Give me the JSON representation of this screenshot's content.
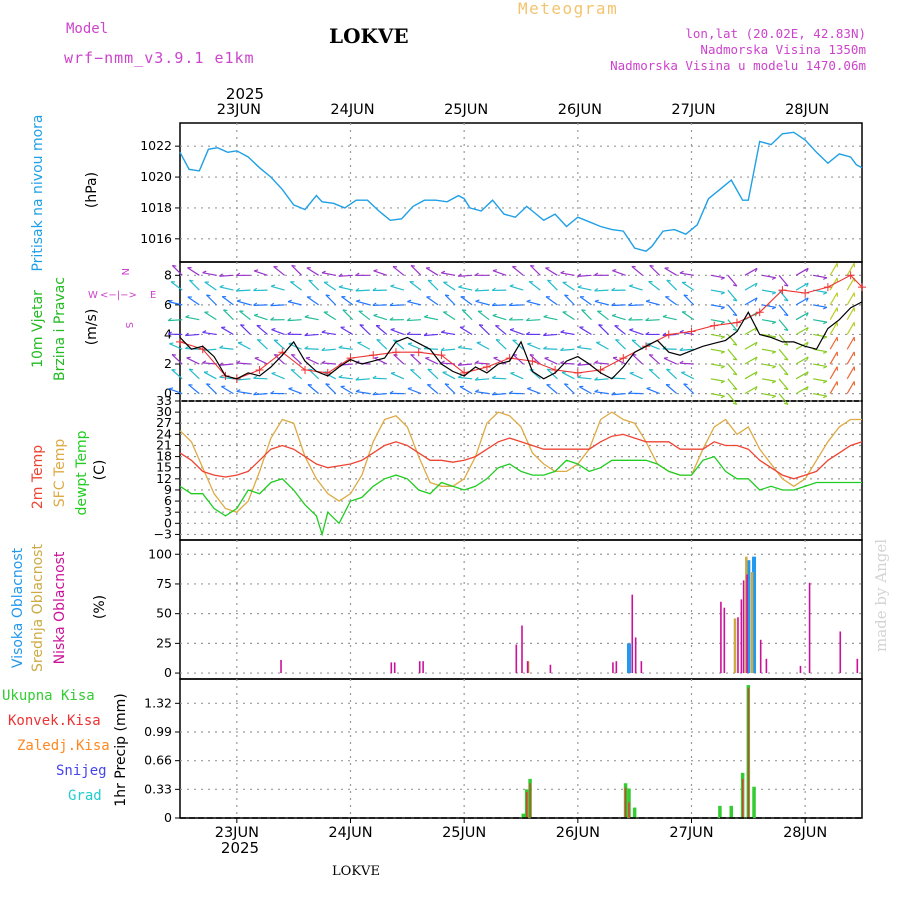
{
  "header": {
    "model_label": "Model",
    "model_name": "wrf−nmm_v3.9.1  e1km",
    "station": "LOKVE",
    "product": "Meteogram",
    "coords": "lon,lat (20.02E, 42.83N)",
    "elevation": "Nadmorska Visina 1350m",
    "model_elevation": "Nadmorska Visina u modelu 1470.06m"
  },
  "footer": {
    "station": "LOKVE",
    "credit": "made by Angel"
  },
  "colors": {
    "pressure": "#1fa0e6",
    "wind_label": "#22bb22",
    "speed_line": "#000000",
    "gust": "#ee3333",
    "t2m": "#ee4433",
    "tsfc": "#ddaa44",
    "dewpt": "#22cc22",
    "cloud_high": "#2299ee",
    "cloud_mid": "#ccaa44",
    "cloud_low": "#cc1199",
    "rain_total": "#33cc33",
    "rain_conv": "#ee3333",
    "freezing": "#ff8822",
    "snow": "#4444ee",
    "hail": "#22cccc",
    "compass": "#cc44cc"
  },
  "chart_data": [
    {
      "type": "line",
      "ylabel": [
        "Pritisak na nivou mora",
        "(hPa)"
      ],
      "x_year": "2025",
      "x_ticks": [
        "23JUN",
        "24JUN",
        "25JUN",
        "26JUN",
        "27JUN",
        "28JUN"
      ],
      "x_range_days": [
        22.5,
        28.5
      ],
      "ylim": [
        1014.5,
        1023.5
      ],
      "yticks": [
        "1016",
        "1018",
        "1020",
        "1022"
      ],
      "series": [
        {
          "x": [
            22.5,
            22.58,
            22.67,
            22.75,
            22.83,
            22.92,
            23.0,
            23.1,
            23.2,
            23.3,
            23.4,
            23.5,
            23.6,
            23.7,
            23.75,
            23.85,
            23.95,
            24.05,
            24.15,
            24.25,
            24.35,
            24.45,
            24.55,
            24.65,
            24.75,
            24.85,
            24.95,
            25.0,
            25.05,
            25.15,
            25.25,
            25.35,
            25.45,
            25.55,
            25.6,
            25.7,
            25.8,
            25.9,
            26.0,
            26.1,
            26.2,
            26.3,
            26.4,
            26.5,
            26.6,
            26.65,
            26.75,
            26.85,
            26.95,
            27.05,
            27.15,
            27.25,
            27.35,
            27.45,
            27.5,
            27.6,
            27.7,
            27.8,
            27.9,
            28.0,
            28.1,
            28.2,
            28.3,
            28.4,
            28.45,
            28.5
          ],
          "y": [
            1021.6,
            1020.5,
            1020.4,
            1021.8,
            1021.9,
            1021.6,
            1021.7,
            1021.3,
            1020.6,
            1020.0,
            1019.2,
            1018.2,
            1017.9,
            1018.8,
            1018.4,
            1018.3,
            1018.0,
            1018.5,
            1018.5,
            1017.8,
            1017.2,
            1017.3,
            1018.1,
            1018.5,
            1018.5,
            1018.4,
            1018.8,
            1018.6,
            1018.0,
            1017.8,
            1018.5,
            1017.6,
            1017.4,
            1018.1,
            1017.8,
            1017.2,
            1017.6,
            1016.8,
            1017.4,
            1017.1,
            1016.8,
            1016.6,
            1016.5,
            1015.4,
            1015.2,
            1015.5,
            1016.5,
            1016.6,
            1016.3,
            1016.9,
            1018.6,
            1019.2,
            1019.8,
            1018.5,
            1018.5,
            1022.3,
            1022.1,
            1022.8,
            1022.9,
            1022.4,
            1021.6,
            1020.9,
            1021.5,
            1021.3,
            1020.8,
            1020.6
          ]
        }
      ]
    },
    {
      "type": "line",
      "ylabel": [
        "10m Vjetar",
        "Brzina i Pravac",
        "(m/s)"
      ],
      "compass": {
        "n": "N",
        "s": "S",
        "e": "E",
        "w": "W",
        "nw": "«<−",
        "ne": "−>",
        "sw": "−»",
        "ne2": "<−"
      },
      "ylim": [
        -0.5,
        8.9
      ],
      "yticks": [
        "0",
        "2",
        "4",
        "6",
        "8"
      ],
      "series": [
        {
          "name": "speed",
          "x": [
            22.5,
            22.6,
            22.7,
            22.8,
            22.9,
            23.0,
            23.1,
            23.2,
            23.3,
            23.4,
            23.5,
            23.6,
            23.7,
            23.8,
            23.9,
            24.0,
            24.1,
            24.2,
            24.3,
            24.4,
            24.5,
            24.6,
            24.7,
            24.8,
            24.9,
            25.0,
            25.1,
            25.2,
            25.3,
            25.4,
            25.5,
            25.6,
            25.7,
            25.8,
            25.9,
            26.0,
            26.1,
            26.2,
            26.3,
            26.4,
            26.5,
            26.6,
            26.7,
            26.8,
            26.9,
            27.0,
            27.1,
            27.2,
            27.3,
            27.4,
            27.5,
            27.6,
            27.7,
            27.8,
            27.9,
            28.0,
            28.1,
            28.2,
            28.3,
            28.4,
            28.5
          ],
          "y": [
            3.8,
            3.0,
            3.2,
            2.5,
            1.2,
            1.0,
            1.4,
            1.2,
            1.8,
            2.6,
            3.5,
            2.2,
            1.5,
            1.2,
            1.8,
            2.3,
            2.0,
            2.2,
            2.4,
            3.5,
            3.8,
            3.4,
            3.0,
            2.0,
            1.5,
            1.2,
            1.8,
            1.4,
            2.0,
            2.2,
            3.5,
            1.5,
            1.0,
            1.4,
            2.2,
            2.5,
            2.0,
            1.4,
            1.0,
            1.8,
            2.8,
            3.2,
            3.6,
            2.8,
            2.6,
            2.9,
            3.2,
            3.4,
            3.6,
            4.2,
            5.5,
            4.0,
            3.8,
            3.5,
            3.5,
            3.2,
            3.0,
            4.4,
            5.0,
            5.8,
            6.2
          ]
        },
        {
          "name": "gust",
          "x": [
            22.5,
            22.7,
            22.9,
            23.0,
            23.2,
            23.4,
            23.6,
            23.8,
            24.0,
            24.2,
            24.4,
            24.6,
            24.8,
            25.0,
            25.2,
            25.4,
            25.6,
            25.8,
            26.0,
            26.2,
            26.4,
            26.6,
            26.8,
            27.0,
            27.2,
            27.4,
            27.6,
            27.8,
            28.0,
            28.2,
            28.4,
            28.5
          ],
          "y": [
            3.5,
            3.0,
            1.2,
            1.0,
            1.6,
            2.8,
            1.6,
            1.4,
            2.4,
            2.6,
            2.8,
            2.8,
            2.6,
            1.4,
            1.8,
            2.4,
            2.2,
            1.6,
            1.4,
            1.6,
            2.4,
            3.2,
            4.0,
            4.2,
            4.6,
            4.8,
            5.5,
            7.0,
            6.8,
            7.2,
            8.0,
            7.2
          ]
        }
      ]
    },
    {
      "type": "line",
      "ylabel": [
        "2m Temp",
        "SFC Temp",
        "dewpt Temp",
        "(C)"
      ],
      "ylim": [
        -4.5,
        33
      ],
      "yticks": [
        "−3",
        "0",
        "3",
        "6",
        "9",
        "12",
        "15",
        "18",
        "21",
        "24",
        "27",
        "30",
        "33"
      ],
      "series": [
        {
          "name": "2m",
          "x": [
            22.5,
            22.6,
            22.7,
            22.8,
            22.9,
            23.0,
            23.1,
            23.2,
            23.3,
            23.4,
            23.5,
            23.6,
            23.7,
            23.8,
            23.9,
            24.0,
            24.1,
            24.2,
            24.3,
            24.4,
            24.5,
            24.6,
            24.7,
            24.8,
            24.9,
            25.0,
            25.1,
            25.2,
            25.3,
            25.4,
            25.5,
            25.6,
            25.7,
            25.8,
            25.9,
            26.0,
            26.1,
            26.2,
            26.3,
            26.4,
            26.5,
            26.6,
            26.7,
            26.8,
            26.9,
            27.0,
            27.1,
            27.2,
            27.3,
            27.4,
            27.5,
            27.6,
            27.7,
            27.8,
            27.9,
            28.0,
            28.1,
            28.2,
            28.3,
            28.4,
            28.5
          ],
          "y": [
            19,
            17,
            14,
            13,
            12.5,
            13,
            14,
            17,
            20,
            21,
            20,
            18,
            16,
            15,
            15.5,
            16,
            17,
            19,
            21,
            22,
            21,
            19,
            17,
            17,
            16.5,
            17,
            18,
            20,
            22,
            23,
            22,
            21,
            20,
            20,
            20,
            20,
            20,
            22,
            23.5,
            24,
            23,
            22,
            22,
            22,
            20,
            20,
            20,
            22,
            21,
            21,
            20,
            17,
            15,
            13,
            12,
            13,
            14,
            17,
            19,
            21,
            22
          ]
        },
        {
          "name": "sfc",
          "x": [
            22.5,
            22.6,
            22.7,
            22.8,
            22.9,
            23.0,
            23.1,
            23.2,
            23.3,
            23.4,
            23.5,
            23.6,
            23.7,
            23.8,
            23.9,
            24.0,
            24.1,
            24.2,
            24.3,
            24.4,
            24.5,
            24.6,
            24.7,
            24.8,
            24.9,
            25.0,
            25.1,
            25.2,
            25.3,
            25.4,
            25.5,
            25.6,
            25.7,
            25.8,
            25.9,
            26.0,
            26.1,
            26.2,
            26.3,
            26.4,
            26.5,
            26.6,
            26.7,
            26.8,
            26.9,
            27.0,
            27.1,
            27.2,
            27.3,
            27.4,
            27.5,
            27.6,
            27.7,
            27.8,
            27.9,
            28.0,
            28.1,
            28.2,
            28.3,
            28.4,
            28.5
          ],
          "y": [
            25,
            22,
            15,
            8,
            4,
            3,
            6,
            14,
            23,
            28,
            27,
            18,
            12,
            8,
            6,
            8,
            13,
            22,
            28,
            29,
            26,
            18,
            11,
            10,
            10,
            12,
            18,
            27,
            30,
            29,
            26,
            19,
            16,
            14,
            14,
            16,
            20,
            28,
            30,
            28,
            27,
            22,
            16,
            14,
            13,
            13,
            20,
            26,
            28,
            24,
            26,
            20,
            16,
            12,
            10,
            12,
            17,
            22,
            26,
            28,
            28
          ]
        },
        {
          "name": "dewpt",
          "x": [
            22.5,
            22.6,
            22.7,
            22.8,
            22.9,
            23.0,
            23.1,
            23.2,
            23.3,
            23.4,
            23.5,
            23.6,
            23.7,
            23.75,
            23.8,
            23.9,
            24.0,
            24.1,
            24.2,
            24.3,
            24.4,
            24.5,
            24.6,
            24.7,
            24.8,
            24.9,
            25.0,
            25.1,
            25.2,
            25.3,
            25.4,
            25.5,
            25.6,
            25.7,
            25.8,
            25.9,
            26.0,
            26.1,
            26.2,
            26.3,
            26.4,
            26.5,
            26.6,
            26.7,
            26.8,
            26.9,
            27.0,
            27.1,
            27.2,
            27.3,
            27.4,
            27.5,
            27.6,
            27.7,
            27.8,
            27.9,
            28.0,
            28.1,
            28.2,
            28.3,
            28.4,
            28.5
          ],
          "y": [
            10,
            8,
            8,
            4,
            2,
            4,
            9,
            8,
            11,
            12,
            9,
            5,
            2,
            -3,
            3,
            0,
            6,
            7,
            10,
            12,
            13,
            12,
            9,
            8,
            11,
            10,
            9,
            10,
            12,
            15,
            16,
            14,
            13,
            13,
            14,
            17,
            16,
            14,
            15,
            17,
            17,
            17,
            17,
            16,
            14,
            13,
            13,
            17,
            18,
            14,
            12,
            12,
            9,
            10,
            9,
            9,
            10,
            11,
            11,
            11,
            11,
            11
          ]
        }
      ]
    },
    {
      "type": "bar",
      "ylabel": [
        "Visoka Oblacnost",
        "Srednja Oblacnost",
        "Niska Oblacnost",
        "(%)"
      ],
      "ylim": [
        -5,
        112
      ],
      "yticks": [
        "0",
        "25",
        "50",
        "75",
        "100"
      ],
      "series": [
        {
          "name": "high",
          "x": [
            26.45,
            27.5,
            27.55
          ],
          "y": [
            25,
            95,
            98
          ]
        },
        {
          "name": "mid",
          "x": [
            25.58,
            27.4,
            27.5,
            27.55
          ],
          "y": [
            10,
            46,
            98,
            85
          ]
        },
        {
          "name": "low",
          "x": [
            23.38,
            24.35,
            24.38,
            24.6,
            24.63,
            25.45,
            25.5,
            25.55,
            25.75,
            26.3,
            26.33,
            26.47,
            26.5,
            26.55,
            27.25,
            27.28,
            27.4,
            27.43,
            27.45,
            27.48,
            27.6,
            27.65,
            27.95,
            28.03,
            28.3,
            28.45
          ],
          "y": [
            11,
            9,
            9,
            10,
            10,
            24,
            40,
            10,
            7,
            9,
            10,
            66,
            30,
            10,
            60,
            55,
            47,
            62,
            78,
            83,
            28,
            12,
            6,
            76,
            35,
            12
          ]
        }
      ]
    },
    {
      "type": "bar",
      "ylabel": [
        "1hr Precip (mm)"
      ],
      "legend": [
        "Ukupna Kisa",
        "Konvek.Kisa",
        "Zaledj.Kisa",
        "Snijeg",
        "Grad"
      ],
      "ylim": [
        0,
        1.6
      ],
      "yticks": [
        "0",
        "0.33",
        "0.66",
        "0.99",
        "1.32"
      ],
      "series": [
        {
          "name": "total",
          "x": [
            25.52,
            25.55,
            25.58,
            26.42,
            26.45,
            26.5,
            27.25,
            27.35,
            27.45,
            27.5,
            27.55
          ],
          "y": [
            0.05,
            0.33,
            0.45,
            0.4,
            0.34,
            0.12,
            0.14,
            0.14,
            0.52,
            1.53,
            0.36
          ]
        },
        {
          "name": "conv",
          "x": [
            25.55,
            25.58,
            26.42,
            26.45,
            27.45,
            27.5
          ],
          "y": [
            0.3,
            0.4,
            0.35,
            0.18,
            0.45,
            1.5
          ]
        }
      ]
    }
  ]
}
